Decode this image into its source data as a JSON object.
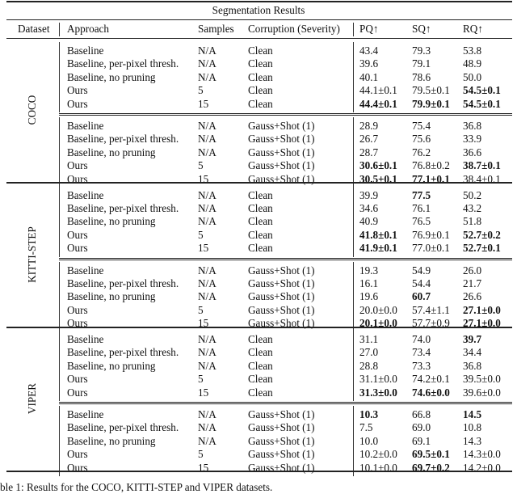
{
  "title": "Segmentation Results",
  "headers": [
    "Dataset",
    "Approach",
    "Samples",
    "Corruption (Severity)",
    "PQ↑",
    "SQ↑",
    "RQ↑"
  ],
  "datasets": [
    {
      "name": "COCO",
      "groups": [
        [
          [
            "Baseline",
            "N/A",
            "Clean",
            {
              "v": "43.4"
            },
            {
              "v": "79.3"
            },
            {
              "v": "53.8"
            }
          ],
          [
            "Baseline, per-pixel thresh.",
            "N/A",
            "Clean",
            {
              "v": "39.6"
            },
            {
              "v": "79.1"
            },
            {
              "v": "48.9"
            }
          ],
          [
            "Baseline, no pruning",
            "N/A",
            "Clean",
            {
              "v": "40.1"
            },
            {
              "v": "78.6"
            },
            {
              "v": "50.0"
            }
          ],
          [
            "Ours",
            "5",
            "Clean",
            {
              "v": "44.1±0.1"
            },
            {
              "v": "79.5±0.1"
            },
            {
              "v": "54.5±0.1",
              "b": true
            }
          ],
          [
            "Ours",
            "15",
            "Clean",
            {
              "v": "44.4±0.1",
              "b": true
            },
            {
              "v": "79.9±0.1",
              "b": true
            },
            {
              "v": "54.5±0.1",
              "b": true
            }
          ]
        ],
        [
          [
            "Baseline",
            "N/A",
            "Gauss+Shot (1)",
            {
              "v": "28.9"
            },
            {
              "v": "75.4"
            },
            {
              "v": "36.8"
            }
          ],
          [
            "Baseline, per-pixel thresh.",
            "N/A",
            "Gauss+Shot (1)",
            {
              "v": "26.7"
            },
            {
              "v": "75.6"
            },
            {
              "v": "33.9"
            }
          ],
          [
            "Baseline, no pruning",
            "N/A",
            "Gauss+Shot (1)",
            {
              "v": "28.7"
            },
            {
              "v": "76.2"
            },
            {
              "v": "36.6"
            }
          ],
          [
            "Ours",
            "5",
            "Gauss+Shot (1)",
            {
              "v": "30.6±0.1",
              "b": true
            },
            {
              "v": "76.8±0.2"
            },
            {
              "v": "38.7±0.1",
              "b": true
            }
          ],
          [
            "Ours",
            "15",
            "Gauss+Shot (1)",
            {
              "v": "30.5±0.1",
              "b": true
            },
            {
              "v": "77.1±0.1",
              "b": true
            },
            {
              "v": "38.4±0.1"
            }
          ]
        ]
      ]
    },
    {
      "name": "KITTI-STEP",
      "groups": [
        [
          [
            "Baseline",
            "N/A",
            "Clean",
            {
              "v": "39.9"
            },
            {
              "v": "77.5",
              "b": true
            },
            {
              "v": "50.2"
            }
          ],
          [
            "Baseline, per-pixel thresh.",
            "N/A",
            "Clean",
            {
              "v": "34.6"
            },
            {
              "v": "76.1"
            },
            {
              "v": "43.2"
            }
          ],
          [
            "Baseline, no pruning",
            "N/A",
            "Clean",
            {
              "v": "40.9"
            },
            {
              "v": "76.5"
            },
            {
              "v": "51.8"
            }
          ],
          [
            "Ours",
            "5",
            "Clean",
            {
              "v": "41.8±0.1",
              "b": true
            },
            {
              "v": "76.9±0.1"
            },
            {
              "v": "52.7±0.2",
              "b": true
            }
          ],
          [
            "Ours",
            "15",
            "Clean",
            {
              "v": "41.9±0.1",
              "b": true
            },
            {
              "v": "77.0±0.1"
            },
            {
              "v": "52.7±0.1",
              "b": true
            }
          ]
        ],
        [
          [
            "Baseline",
            "N/A",
            "Gauss+Shot (1)",
            {
              "v": "19.3"
            },
            {
              "v": "54.9"
            },
            {
              "v": "26.0"
            }
          ],
          [
            "Baseline, per-pixel thresh.",
            "N/A",
            "Gauss+Shot (1)",
            {
              "v": "16.1"
            },
            {
              "v": "54.4"
            },
            {
              "v": "21.7"
            }
          ],
          [
            "Baseline, no pruning",
            "N/A",
            "Gauss+Shot (1)",
            {
              "v": "19.6"
            },
            {
              "v": "60.7",
              "b": true
            },
            {
              "v": "26.6"
            }
          ],
          [
            "Ours",
            "5",
            "Gauss+Shot (1)",
            {
              "v": "20.0±0.0"
            },
            {
              "v": "57.4±1.1"
            },
            {
              "v": "27.1±0.0",
              "b": true
            }
          ],
          [
            "Ours",
            "15",
            "Gauss+Shot (1)",
            {
              "v": "20.1±0.0",
              "b": true
            },
            {
              "v": "57.7±0.9"
            },
            {
              "v": "27.1±0.0",
              "b": true
            }
          ]
        ]
      ]
    },
    {
      "name": "VIPER",
      "groups": [
        [
          [
            "Baseline",
            "N/A",
            "Clean",
            {
              "v": "31.1"
            },
            {
              "v": "74.0"
            },
            {
              "v": "39.7",
              "b": true
            }
          ],
          [
            "Baseline, per-pixel thresh.",
            "N/A",
            "Clean",
            {
              "v": "27.0"
            },
            {
              "v": "73.4"
            },
            {
              "v": "34.4"
            }
          ],
          [
            "Baseline, no pruning",
            "N/A",
            "Clean",
            {
              "v": "28.8"
            },
            {
              "v": "73.3"
            },
            {
              "v": "36.8"
            }
          ],
          [
            "Ours",
            "5",
            "Clean",
            {
              "v": "31.1±0.0"
            },
            {
              "v": "74.2±0.1"
            },
            {
              "v": "39.5±0.0"
            }
          ],
          [
            "Ours",
            "15",
            "Clean",
            {
              "v": "31.3±0.0",
              "b": true
            },
            {
              "v": "74.6±0.0",
              "b": true
            },
            {
              "v": "39.6±0.0"
            }
          ]
        ],
        [
          [
            "Baseline",
            "N/A",
            "Gauss+Shot (1)",
            {
              "v": "10.3",
              "b": true
            },
            {
              "v": "66.8"
            },
            {
              "v": "14.5",
              "b": true
            }
          ],
          [
            "Baseline, per-pixel thresh.",
            "N/A",
            "Gauss+Shot (1)",
            {
              "v": "7.5"
            },
            {
              "v": "69.0"
            },
            {
              "v": "10.8"
            }
          ],
          [
            "Baseline, no pruning",
            "N/A",
            "Gauss+Shot (1)",
            {
              "v": "10.0"
            },
            {
              "v": "69.1"
            },
            {
              "v": "14.3"
            }
          ],
          [
            "Ours",
            "5",
            "Gauss+Shot (1)",
            {
              "v": "10.2±0.0"
            },
            {
              "v": "69.5±0.1",
              "b": true
            },
            {
              "v": "14.3±0.0"
            }
          ],
          [
            "Ours",
            "15",
            "Gauss+Shot (1)",
            {
              "v": "10.1±0.0"
            },
            {
              "v": "69.7±0.2",
              "b": true
            },
            {
              "v": "14.2±0.0"
            }
          ]
        ]
      ]
    }
  ],
  "caption": "ble 1: Results for the COCO, KITTI-STEP and VIPER datasets."
}
